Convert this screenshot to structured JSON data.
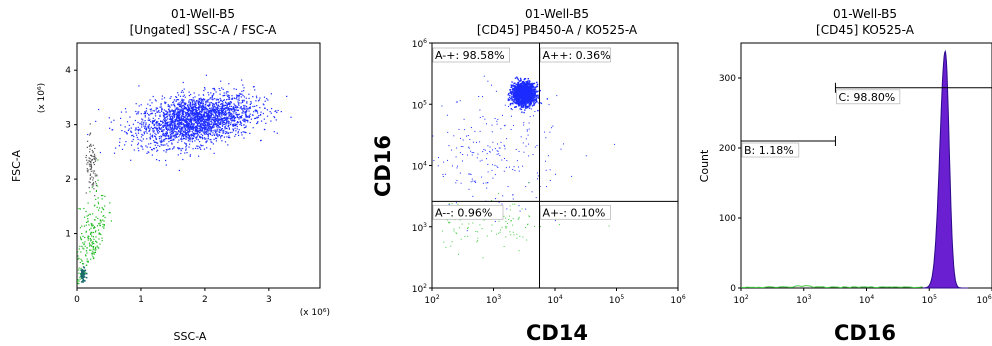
{
  "chart_data": [
    {
      "type": "scatter",
      "title": "01-Well-B5",
      "subtitle": "[Ungated] SSC-A / FSC-A",
      "xlabel": "SSC-A",
      "ylabel": "FSC-A",
      "x_scale_note": "(x 10⁶)",
      "y_scale_note": "(x 10⁶)",
      "xlim": [
        0,
        3.8
      ],
      "ylim": [
        0,
        4.5
      ],
      "x_ticks": [
        "0",
        "1",
        "2",
        "3"
      ],
      "y_ticks": [
        "1",
        "2",
        "3",
        "4"
      ],
      "colors": {
        "main": "#1c2cff",
        "debris": "#22bb22",
        "dark": "#555555"
      },
      "populations": [
        {
          "name": "main",
          "center": [
            1.85,
            3.1
          ],
          "spread": [
            0.45,
            0.22
          ],
          "count": 2600
        },
        {
          "name": "debris",
          "center": [
            0.22,
            0.45
          ],
          "spread": [
            0.12,
            0.6
          ],
          "count": 220
        },
        {
          "name": "dark",
          "center": [
            0.22,
            2.2
          ],
          "spread": [
            0.05,
            0.25
          ],
          "count": 90
        }
      ]
    },
    {
      "type": "scatter",
      "title": "01-Well-B5",
      "subtitle": "[CD45] PB450-A / KO525-A",
      "xlabel": "CD14",
      "ylabel": "CD16",
      "x_scale": "log",
      "y_scale": "log",
      "xlim": [
        100,
        1000000
      ],
      "ylim": [
        100,
        1000000
      ],
      "x_ticks": [
        "10²",
        "10³",
        "10⁴",
        "10⁵",
        "10⁶"
      ],
      "y_ticks": [
        "10²",
        "10³",
        "10⁴",
        "10⁵",
        "10⁶"
      ],
      "quadrant_x": 5600,
      "quadrant_y": 2600,
      "quadrants": [
        {
          "label": "A-+: 98.58%",
          "position": "top-left"
        },
        {
          "label": "A++: 0.36%",
          "position": "top-right"
        },
        {
          "label": "A--: 0.96%",
          "position": "bottom-left"
        },
        {
          "label": "A+-: 0.10%",
          "position": "bottom-right"
        }
      ],
      "colors": {
        "main": "#1c2cff",
        "low": "#44cc44"
      }
    },
    {
      "type": "area",
      "title": "01-Well-B5",
      "subtitle": "[CD45] KO525-A",
      "xlabel": "CD16",
      "ylabel": "Count",
      "x_scale": "log",
      "xlim": [
        100,
        1000000
      ],
      "ylim": [
        0,
        350
      ],
      "x_ticks": [
        "10²",
        "10³",
        "10⁴",
        "10⁵",
        "10⁶"
      ],
      "y_ticks": [
        "0",
        "100",
        "200",
        "300"
      ],
      "peak": {
        "x": 180000,
        "y": 338
      },
      "gates": [
        {
          "label": "B: 1.18%",
          "x_from": 100,
          "x_to": 3200,
          "y": 210
        },
        {
          "label": "C: 98.80%",
          "x_from": 3200,
          "x_to": 1000000,
          "y": 286
        }
      ],
      "colors": {
        "fill": "#6a1fd0",
        "edge": "#2a0a8a",
        "low": "#44cc44"
      }
    }
  ]
}
